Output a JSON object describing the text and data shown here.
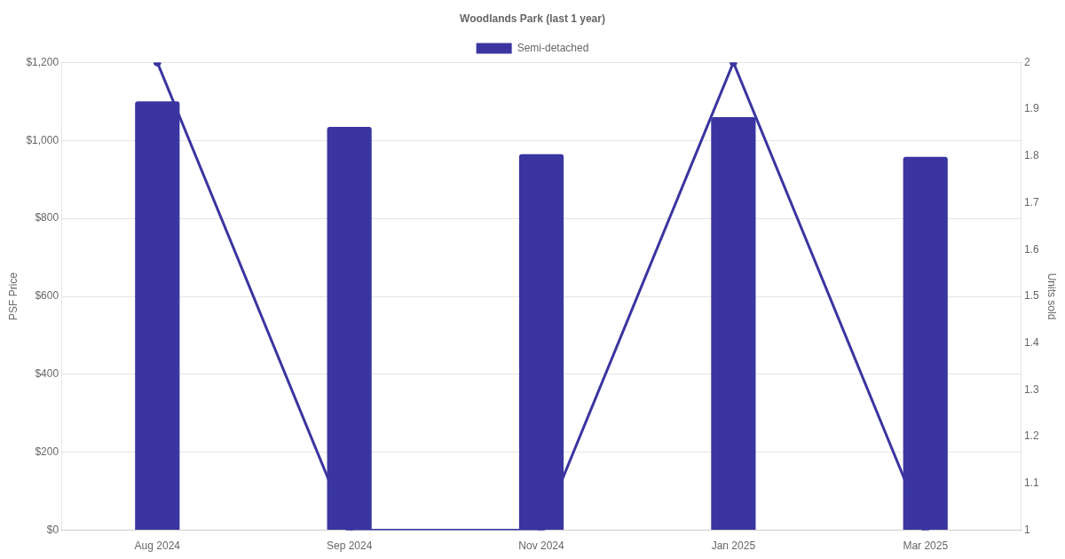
{
  "chart_data": {
    "type": "bar",
    "title": "Woodlands Park (last 1 year)",
    "categories": [
      "Aug 2024",
      "Sep 2024",
      "Nov 2024",
      "Jan 2025",
      "Mar 2025"
    ],
    "series": [
      {
        "name": "Semi-detached",
        "color": "#3a35a0",
        "values": [
          1100,
          1035,
          965,
          1060,
          958
        ]
      },
      {
        "type": "line",
        "axis": "y2",
        "color": "#3a35a0",
        "values": [
          2,
          1,
          1,
          2,
          1
        ]
      }
    ],
    "ylabel": "PSF Price",
    "y2label": "Units sold",
    "ylim": [
      0,
      1200
    ],
    "yticks": [
      {
        "value": 0,
        "label": "$0"
      },
      {
        "value": 200,
        "label": "$200"
      },
      {
        "value": 400,
        "label": "$400"
      },
      {
        "value": 600,
        "label": "$600"
      },
      {
        "value": 800,
        "label": "$800"
      },
      {
        "value": 1000,
        "label": "$1,000"
      },
      {
        "value": 1200,
        "label": "$1,200"
      }
    ],
    "y2lim": [
      1,
      2
    ],
    "y2ticks": [
      1,
      1.1,
      1.2,
      1.3,
      1.4,
      1.5,
      1.6,
      1.7,
      1.8,
      1.9,
      2
    ],
    "grid": "y",
    "legend": "top",
    "marker": "circle"
  }
}
